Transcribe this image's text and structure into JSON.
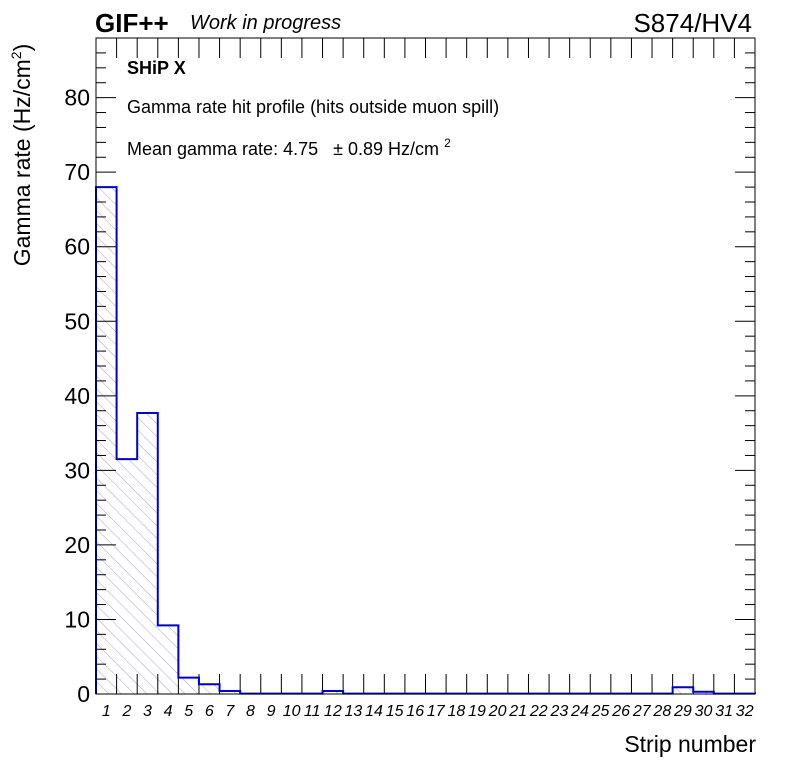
{
  "header": {
    "gif": "GIF++",
    "status": "Work in progress",
    "run": "S874/HV4"
  },
  "annotations": {
    "line1": "SHiP X",
    "line2": "Gamma rate hit profile (hits outside muon spill)",
    "line3_text": "Mean gamma rate: 4.75",
    "line3_err": "± 0.89 Hz/cm",
    "line3_sup": "2"
  },
  "axes": {
    "y_text": "Gamma rate (Hz/cm",
    "y_sup": "2",
    "y_close": ")",
    "x_text": "Strip number"
  },
  "colors": {
    "histogram_line": "#0000cc",
    "hatch": "#9999cc"
  },
  "chart_data": {
    "type": "bar",
    "style": "histogram-step-hatched",
    "xlabel": "Strip number",
    "ylabel": "Gamma rate (Hz/cm²)",
    "xlim": [
      1,
      33
    ],
    "ylim": [
      0,
      88
    ],
    "y_ticks": [
      0,
      10,
      20,
      30,
      40,
      50,
      60,
      70,
      80
    ],
    "categories": [
      "1",
      "2",
      "3",
      "4",
      "5",
      "6",
      "7",
      "8",
      "9",
      "10",
      "11",
      "12",
      "13",
      "14",
      "15",
      "16",
      "17",
      "18",
      "19",
      "20",
      "21",
      "22",
      "23",
      "24",
      "25",
      "26",
      "27",
      "28",
      "29",
      "30",
      "31",
      "32"
    ],
    "values": [
      68.0,
      31.5,
      37.7,
      9.2,
      2.2,
      1.3,
      0.4,
      0.05,
      0.05,
      0.05,
      0.05,
      0.4,
      0.05,
      0.05,
      0.05,
      0.05,
      0.05,
      0.05,
      0.05,
      0.05,
      0.05,
      0.05,
      0.05,
      0.05,
      0.05,
      0.05,
      0.05,
      0.05,
      0.9,
      0.3,
      0.05,
      0.05
    ],
    "grid": false
  }
}
